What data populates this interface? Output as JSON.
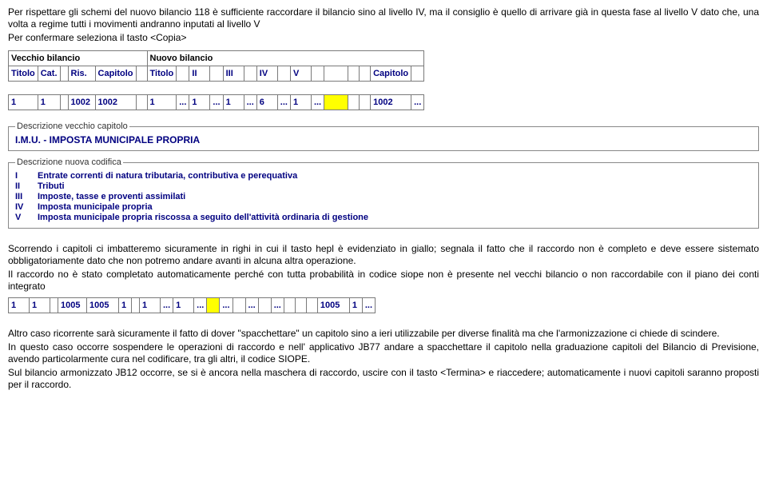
{
  "paras_top": [
    "Per rispettare gli schemi del nuovo bilancio 118 è sufficiente raccordare il bilancio sino al livello IV, ma il consiglio è quello di arrivare già in questa fase al livello V dato che, una volta a regime tutti i movimenti andranno inputati al livello V",
    "Per confermare seleziona il tasto <Copia>"
  ],
  "main_table": {
    "yellow_header": {
      "left": "Vecchio bilancio",
      "right": "Nuovo bilancio"
    },
    "navy_header": [
      "Titolo",
      "Cat.",
      "",
      "Ris.",
      "Capitolo",
      "",
      "Titolo",
      "",
      "II",
      "",
      "III",
      "",
      "IV",
      "",
      "V",
      "",
      "",
      "",
      "",
      "Capitolo",
      ""
    ],
    "data_row": [
      "1",
      "1",
      "",
      "1002",
      "1002",
      "",
      "1",
      "...",
      "1",
      "...",
      "1",
      "...",
      "6",
      "...",
      "1",
      "...",
      "",
      "",
      "",
      "1002",
      "..."
    ],
    "yellow_cell_index": 16
  },
  "fieldset_old": {
    "legend": "Descrizione vecchio capitolo",
    "text": "I.M.U. - IMPOSTA MUNICIPALE PROPRIA"
  },
  "fieldset_new": {
    "legend": "Descrizione nuova codifica",
    "rows": [
      {
        "lvl": "I",
        "txt": "Entrate correnti di natura tributaria, contributiva e perequativa"
      },
      {
        "lvl": "II",
        "txt": "Tributi"
      },
      {
        "lvl": "III",
        "txt": "Imposte, tasse e proventi assimilati"
      },
      {
        "lvl": "IV",
        "txt": "Imposta municipale propria"
      },
      {
        "lvl": "V",
        "txt": "Imposta municipale propria riscossa a seguito dell'attività ordinaria di gestione"
      }
    ]
  },
  "paras_mid": [
    "Scorrendo i capitoli ci imbatteremo sicuramente in righi in cui il tasto hepl è evidenziato in giallo; segnala il fatto che il raccordo non è completo e deve essere sistemato obbligatoriamente dato che non potremo andare avanti in alcuna altra operazione.",
    "Il raccordo no è stato completato automaticamente perché con tutta probabilità in codice siope non è presente nel vecchi bilancio o non raccordabile con il piano dei conti integrato"
  ],
  "mini_row": {
    "cells": [
      "1",
      "1",
      "",
      "1005",
      "1005",
      "1",
      "",
      "1",
      "...",
      "1",
      "...",
      "",
      "...",
      "",
      "...",
      "",
      "...",
      "",
      "",
      "",
      "1005",
      "1",
      "..."
    ],
    "yellow_cell_index": 11
  },
  "paras_bottom": [
    "Altro caso ricorrente sarà sicuramente il fatto di dover \"spacchettare\" un capitolo sino a ieri utilizzabile per diverse finalità ma che l'armonizzazione ci chiede di scindere.",
    "In questo caso occorre sospendere le operazioni di raccordo e nell' applicativo JB77 andare a spacchettare il capitolo nella graduazione capitoli del Bilancio di Previsione, avendo particolarmente cura nel codificare, tra gli altri, il codice SIOPE.",
    "Sul bilancio armonizzato JB12 occorre, se si è ancora nella maschera di raccordo, uscire con il tasto <Termina> e riaccedere; automaticamente i nuovi capitoli saranno proposti per il raccordo."
  ],
  "col_widths_main": [
    34,
    26,
    10,
    34,
    48,
    14,
    34,
    16,
    26,
    16,
    26,
    16,
    26,
    16,
    26,
    16,
    30,
    14,
    14,
    48,
    16
  ],
  "col_widths_mini": [
    26,
    26,
    10,
    36,
    40,
    16,
    10,
    26,
    16,
    26,
    16,
    16,
    16,
    16,
    16,
    16,
    16,
    14,
    14,
    14,
    40,
    16,
    16
  ]
}
